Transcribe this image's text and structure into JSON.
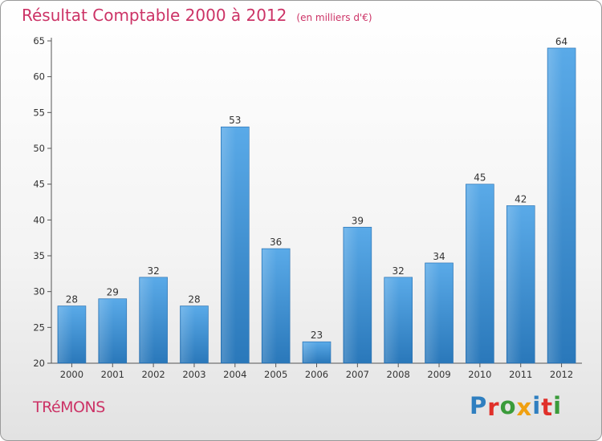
{
  "header": {
    "title": "Résultat Comptable 2000 à 2012",
    "subtitle": "(en milliers d'€)"
  },
  "footer": {
    "commune": "TRéMONS",
    "logo_text": "Proxiti",
    "logo_colors": [
      "#2f7fc0",
      "#e0302a",
      "#3a9b3a",
      "#f0a010",
      "#2f7fc0",
      "#e0302a",
      "#3a9b3a"
    ]
  },
  "colors": {
    "bar_light": "#5aaae8",
    "bar_dark": "#2a78ba",
    "title": "#cc3366"
  },
  "chart_data": {
    "type": "bar",
    "title": "Résultat Comptable 2000 à 2012",
    "subtitle": "(en milliers d'€)",
    "categories": [
      "2000",
      "2001",
      "2002",
      "2003",
      "2004",
      "2005",
      "2006",
      "2007",
      "2008",
      "2009",
      "2010",
      "2011",
      "2012"
    ],
    "values": [
      28,
      29,
      32,
      28,
      53,
      36,
      23,
      39,
      32,
      34,
      45,
      42,
      64
    ],
    "ylim": [
      20,
      65
    ],
    "yticks": [
      20,
      25,
      30,
      35,
      40,
      45,
      50,
      55,
      60,
      65
    ],
    "grid": false,
    "legend": "none"
  }
}
